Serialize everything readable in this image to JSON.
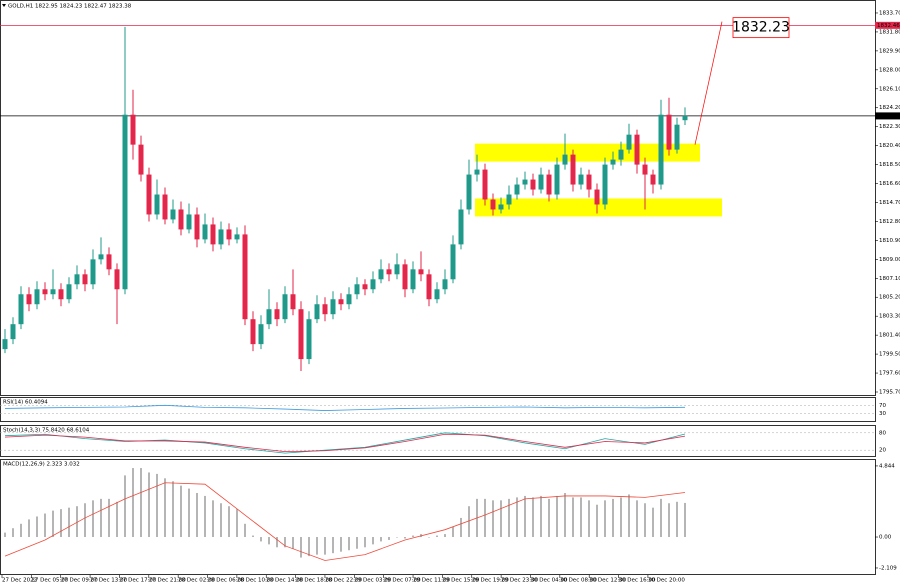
{
  "chart_data": {
    "type": "candlestick",
    "title": "GOLD,H1 1822.95 1824.23 1822.47 1823.38",
    "ohlc": [
      [
        1800.0,
        1802.0,
        1799.6,
        1801.0
      ],
      [
        1801.0,
        1803.2,
        1800.5,
        1802.5
      ],
      [
        1802.5,
        1806.3,
        1802.0,
        1805.5
      ],
      [
        1805.5,
        1806.2,
        1803.8,
        1804.5
      ],
      [
        1804.5,
        1806.8,
        1804.0,
        1806.0
      ],
      [
        1806.0,
        1806.7,
        1804.9,
        1805.5
      ],
      [
        1805.5,
        1808.0,
        1805.0,
        1806.0
      ],
      [
        1806.0,
        1806.6,
        1804.3,
        1805.0
      ],
      [
        1805.0,
        1807.2,
        1804.6,
        1806.5
      ],
      [
        1806.5,
        1808.4,
        1806.0,
        1807.5
      ],
      [
        1807.5,
        1808.0,
        1805.8,
        1806.5
      ],
      [
        1806.5,
        1810.0,
        1806.0,
        1809.0
      ],
      [
        1809.0,
        1811.2,
        1808.5,
        1809.5
      ],
      [
        1809.5,
        1810.2,
        1807.4,
        1808.0
      ],
      [
        1808.0,
        1808.6,
        1802.5,
        1806.0
      ],
      [
        1806.0,
        1832.3,
        1805.5,
        1823.5
      ],
      [
        1823.5,
        1826.0,
        1819.0,
        1820.5
      ],
      [
        1820.5,
        1821.4,
        1816.8,
        1817.5
      ],
      [
        1817.5,
        1818.2,
        1812.8,
        1813.5
      ],
      [
        1813.5,
        1817.0,
        1813.0,
        1815.5
      ],
      [
        1815.5,
        1816.2,
        1812.5,
        1813.0
      ],
      [
        1813.0,
        1815.0,
        1812.6,
        1814.0
      ],
      [
        1814.0,
        1814.8,
        1811.4,
        1812.0
      ],
      [
        1812.0,
        1814.6,
        1811.6,
        1813.5
      ],
      [
        1813.5,
        1814.2,
        1810.2,
        1811.0
      ],
      [
        1811.0,
        1813.6,
        1810.6,
        1812.5
      ],
      [
        1812.5,
        1813.2,
        1809.8,
        1810.5
      ],
      [
        1810.5,
        1812.8,
        1810.0,
        1812.0
      ],
      [
        1812.0,
        1812.6,
        1810.4,
        1811.0
      ],
      [
        1811.0,
        1812.2,
        1810.6,
        1811.5
      ],
      [
        1811.5,
        1812.4,
        1802.4,
        1803.0
      ],
      [
        1803.0,
        1803.8,
        1799.8,
        1800.5
      ],
      [
        1800.5,
        1803.4,
        1800.0,
        1802.5
      ],
      [
        1802.5,
        1806.0,
        1802.0,
        1804.0
      ],
      [
        1804.0,
        1804.7,
        1802.3,
        1803.0
      ],
      [
        1803.0,
        1806.3,
        1802.6,
        1805.5
      ],
      [
        1805.5,
        1808.0,
        1803.4,
        1804.0
      ],
      [
        1804.0,
        1804.8,
        1797.8,
        1799.0
      ],
      [
        1799.0,
        1803.8,
        1798.5,
        1803.0
      ],
      [
        1803.0,
        1805.4,
        1802.6,
        1804.5
      ],
      [
        1804.5,
        1805.2,
        1802.8,
        1803.5
      ],
      [
        1803.5,
        1805.8,
        1803.0,
        1805.0
      ],
      [
        1805.0,
        1805.6,
        1803.9,
        1804.5
      ],
      [
        1804.5,
        1806.2,
        1804.0,
        1805.5
      ],
      [
        1805.5,
        1807.2,
        1805.0,
        1806.5
      ],
      [
        1806.5,
        1807.0,
        1805.4,
        1806.0
      ],
      [
        1806.0,
        1807.8,
        1805.6,
        1807.0
      ],
      [
        1807.0,
        1809.0,
        1806.6,
        1808.0
      ],
      [
        1808.0,
        1808.6,
        1806.8,
        1807.5
      ],
      [
        1807.5,
        1809.6,
        1807.0,
        1808.5
      ],
      [
        1808.5,
        1809.0,
        1805.2,
        1806.0
      ],
      [
        1806.0,
        1808.8,
        1805.6,
        1808.0
      ],
      [
        1808.0,
        1809.8,
        1806.8,
        1807.5
      ],
      [
        1807.5,
        1808.0,
        1804.3,
        1805.0
      ],
      [
        1805.0,
        1806.7,
        1804.6,
        1806.0
      ],
      [
        1806.0,
        1808.0,
        1805.5,
        1807.0
      ],
      [
        1807.0,
        1811.4,
        1806.6,
        1810.5
      ],
      [
        1810.5,
        1815.0,
        1810.0,
        1814.0
      ],
      [
        1814.0,
        1819.0,
        1813.5,
        1817.5
      ],
      [
        1817.5,
        1819.5,
        1816.8,
        1818.0
      ],
      [
        1818.0,
        1818.6,
        1814.4,
        1815.0
      ],
      [
        1815.0,
        1815.6,
        1813.4,
        1814.0
      ],
      [
        1814.0,
        1815.2,
        1813.6,
        1814.5
      ],
      [
        1814.5,
        1816.4,
        1814.0,
        1815.5
      ],
      [
        1815.5,
        1817.2,
        1815.0,
        1816.5
      ],
      [
        1816.5,
        1817.8,
        1816.0,
        1817.0
      ],
      [
        1817.0,
        1817.6,
        1815.4,
        1816.0
      ],
      [
        1816.0,
        1818.2,
        1815.6,
        1817.5
      ],
      [
        1817.5,
        1818.0,
        1814.8,
        1815.5
      ],
      [
        1815.5,
        1819.2,
        1815.0,
        1818.5
      ],
      [
        1818.5,
        1821.6,
        1818.0,
        1819.5
      ],
      [
        1819.5,
        1820.0,
        1815.8,
        1816.5
      ],
      [
        1816.5,
        1818.2,
        1816.0,
        1817.5
      ],
      [
        1817.5,
        1818.0,
        1815.2,
        1816.0
      ],
      [
        1816.0,
        1816.6,
        1813.6,
        1814.5
      ],
      [
        1814.5,
        1819.2,
        1814.0,
        1818.5
      ],
      [
        1818.5,
        1819.8,
        1818.0,
        1819.0
      ],
      [
        1819.0,
        1820.8,
        1818.4,
        1820.0
      ],
      [
        1820.0,
        1822.6,
        1819.6,
        1821.5
      ],
      [
        1821.5,
        1822.0,
        1817.6,
        1818.5
      ],
      [
        1818.5,
        1819.2,
        1814.0,
        1817.5
      ],
      [
        1817.5,
        1818.0,
        1815.6,
        1816.5
      ],
      [
        1816.5,
        1825.0,
        1816.0,
        1823.5
      ],
      [
        1823.5,
        1825.2,
        1819.4,
        1820.0
      ],
      [
        1820.0,
        1823.2,
        1819.6,
        1822.5
      ],
      [
        1822.95,
        1824.23,
        1822.47,
        1823.38
      ]
    ],
    "bull_color": "#1f9a8a",
    "bear_color": "#e3264a",
    "ylim": [
      1795.4,
      1834.8
    ],
    "yticks": [
      {
        "value": 1795.7,
        "label": "1795.70"
      },
      {
        "value": 1797.6,
        "label": "1797.60"
      },
      {
        "value": 1799.5,
        "label": "1799.50"
      },
      {
        "value": 1801.4,
        "label": "1801.40"
      },
      {
        "value": 1803.3,
        "label": "1803.30"
      },
      {
        "value": 1805.2,
        "label": "1805.20"
      },
      {
        "value": 1807.1,
        "label": "1807.10"
      },
      {
        "value": 1809.0,
        "label": "1809.00"
      },
      {
        "value": 1810.9,
        "label": "1810.90"
      },
      {
        "value": 1812.8,
        "label": "1812.80"
      },
      {
        "value": 1814.7,
        "label": "1814.70"
      },
      {
        "value": 1816.6,
        "label": "1816.60"
      },
      {
        "value": 1818.5,
        "label": "1818.50"
      },
      {
        "value": 1820.4,
        "label": "1820.40"
      },
      {
        "value": 1822.3,
        "label": "1822.30"
      },
      {
        "value": 1824.2,
        "label": "1824.20"
      },
      {
        "value": 1826.1,
        "label": "1826.10"
      },
      {
        "value": 1828.0,
        "label": "1828.00"
      },
      {
        "value": 1829.9,
        "label": "1829.90"
      },
      {
        "value": 1831.8,
        "label": "1831.80"
      },
      {
        "value": 1833.7,
        "label": "1833.70"
      }
    ],
    "time_labels": [
      "27 Dec 2022",
      "27 Dec 05:00",
      "27 Dec 09:00",
      "27 Dec 13:00",
      "27 Dec 17:00",
      "27 Dec 21:00",
      "28 Dec 02:00",
      "28 Dec 06:00",
      "28 Dec 10:00",
      "28 Dec 14:00",
      "28 Dec 18:00",
      "28 Dec 22:00",
      "29 Dec 03:00",
      "29 Dec 07:00",
      "29 Dec 11:00",
      "29 Dec 15:00",
      "29 Dec 19:00",
      "29 Dec 23:00",
      "30 Dec 04:00",
      "30 Dec 08:00",
      "30 Dec 12:00",
      "30 Dec 16:00",
      "30 Dec 20:00"
    ],
    "price_lines": [
      {
        "value": 1832.46,
        "color": "#e3264a"
      },
      {
        "value": 1823.38,
        "color": "#000000"
      }
    ],
    "zones": [
      {
        "top": 1820.6,
        "bottom": 1818.8,
        "color": "#ffff00"
      },
      {
        "top": 1815.1,
        "bottom": 1813.3,
        "color": "#ffff00"
      }
    ],
    "trendline_start": 1820.5,
    "annotation": {
      "value": 1832.23,
      "color": "#ff0000"
    },
    "indicators": [
      {
        "type": "line",
        "label": "RSI(14) 60.4094",
        "ylim": [
          0,
          100
        ],
        "yticks": [
          70,
          30
        ],
        "series": [
          {
            "color": "#3d9be0",
            "values": [
              55,
              58,
              60,
              62,
              70,
              60,
              58,
              52,
              45,
              50,
              55,
              57,
              60,
              62,
              58,
              60,
              58,
              60.4094
            ]
          }
        ]
      },
      {
        "type": "line",
        "label": "Stoch(14,3,3) 75.8420 68.6104",
        "ylim": [
          0,
          100
        ],
        "yticks": [
          80,
          20
        ],
        "series": [
          {
            "color": "#1fa7a0",
            "values": [
              70,
              75,
              60,
              50,
              55,
              45,
              25,
              10,
              20,
              30,
              55,
              80,
              70,
              45,
              25,
              60,
              40,
              75.842
            ]
          },
          {
            "color": "#e3264a",
            "values": [
              65,
              72,
              65,
              52,
              52,
              48,
              30,
              15,
              18,
              28,
              50,
              75,
              72,
              50,
              30,
              50,
              45,
              68.6104
            ]
          }
        ]
      },
      {
        "type": "macd",
        "label": "MACD(12,26,9) 2.323 3.032",
        "ylim": [
          -2.52,
          5.18
        ],
        "yticks": [
          4.844,
          {
            "value": 0,
            "label": "0.00"
          },
          -2.109
        ],
        "histogram": {
          "color": "#b5b5b5",
          "values": [
            0.3,
            0.6,
            0.9,
            1.2,
            1.4,
            1.6,
            1.8,
            1.9,
            2.0,
            2.1,
            2.3,
            2.5,
            2.6,
            2.6,
            2.4,
            4.2,
            4.7,
            4.7,
            4.4,
            4.3,
            4.0,
            3.8,
            3.5,
            3.3,
            3.0,
            2.8,
            2.5,
            2.3,
            2.1,
            1.9,
            0.9,
            0.1,
            -0.3,
            -0.5,
            -0.7,
            -0.7,
            -0.8,
            -1.4,
            -1.3,
            -1.2,
            -1.2,
            -1.1,
            -1.0,
            -0.9,
            -0.8,
            -0.7,
            -0.5,
            -0.3,
            -0.2,
            0.0,
            -0.1,
            0.1,
            0.2,
            0.0,
            0.1,
            0.2,
            0.7,
            1.3,
            2.1,
            2.6,
            2.6,
            2.5,
            2.5,
            2.6,
            2.7,
            2.8,
            2.7,
            2.8,
            2.6,
            2.8,
            3.0,
            2.7,
            2.7,
            2.5,
            2.2,
            2.5,
            2.6,
            2.7,
            2.9,
            2.5,
            2.3,
            2.0,
            2.6,
            2.3,
            2.4,
            2.323
          ]
        },
        "signal": {
          "color": "#f04a3a",
          "values": [
            -1.3,
            -0.2,
            1.3,
            2.6,
            3.7,
            3.6,
            1.5,
            -0.6,
            -1.6,
            -1.2,
            -0.2,
            0.5,
            1.5,
            2.6,
            2.8,
            2.8,
            2.7,
            3.032
          ]
        }
      }
    ]
  }
}
